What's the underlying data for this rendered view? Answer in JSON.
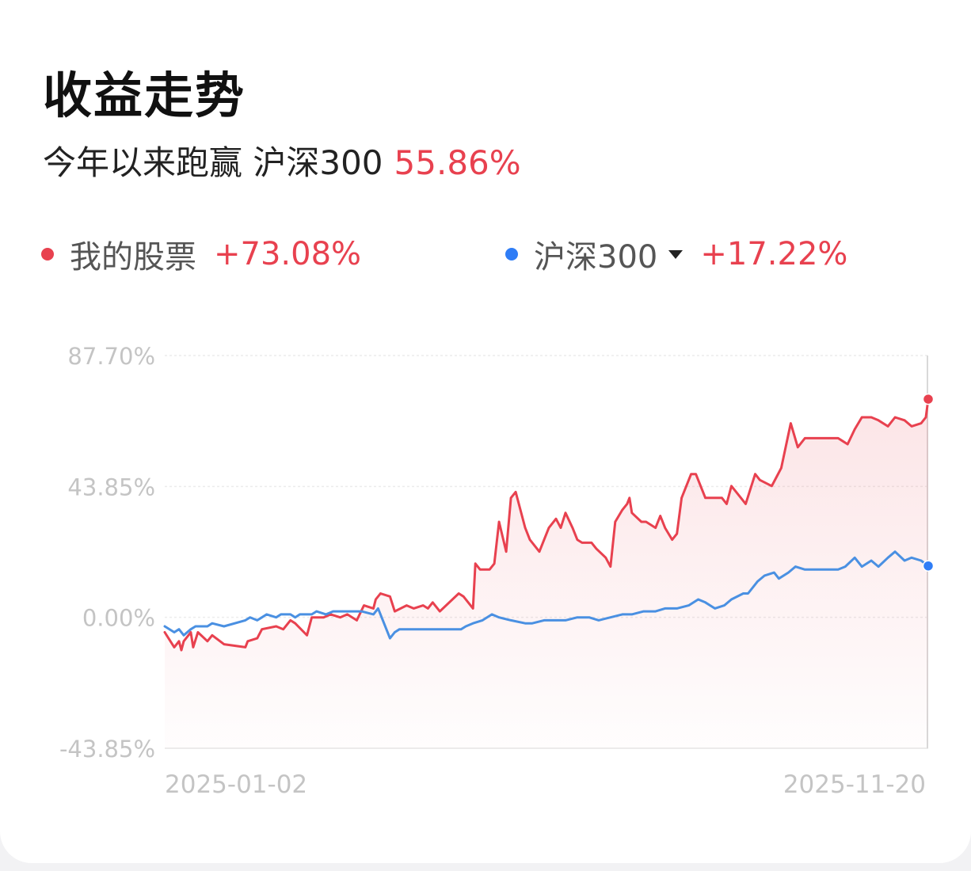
{
  "header": {
    "title": "收益走势",
    "subtitle_text": "今年以来跑赢 沪深300",
    "subtitle_value": "55.86%"
  },
  "legend": {
    "mine_label": "我的股票",
    "mine_value": "+73.08%",
    "index_label": "沪深300",
    "index_value": "+17.22%",
    "index_dropdown_icon": "caret-down-icon"
  },
  "colors": {
    "mine": "#e8414f",
    "index": "#4a90e2",
    "positive": "#e8414f",
    "axis_text": "#c4c4c4"
  },
  "chart_data": {
    "type": "line",
    "y_tick_labels": [
      "87.70%",
      "43.85%",
      "0.00%",
      "-43.85%"
    ],
    "y_ticks": [
      87.7,
      43.85,
      0,
      -43.85
    ],
    "ylim": [
      -43.85,
      87.7
    ],
    "x_tick_labels": [
      "2025-01-02",
      "2025-11-20"
    ],
    "x_range": [
      "2025-01-02",
      "2025-11-20"
    ],
    "grid": true,
    "legend_position": "top-left",
    "series": [
      {
        "name": "我的股票",
        "points": [
          [
            "2025-01-02",
            -5
          ],
          [
            "2025-01-06",
            -10
          ],
          [
            "2025-01-08",
            -8
          ],
          [
            "2025-01-09",
            -11
          ],
          [
            "2025-01-10",
            -8
          ],
          [
            "2025-01-13",
            -5
          ],
          [
            "2025-01-14",
            -10
          ],
          [
            "2025-01-16",
            -5
          ],
          [
            "2025-01-20",
            -8
          ],
          [
            "2025-01-22",
            -6
          ],
          [
            "2025-01-27",
            -9
          ],
          [
            "2025-02-05",
            -10
          ],
          [
            "2025-02-06",
            -8
          ],
          [
            "2025-02-10",
            -7
          ],
          [
            "2025-02-12",
            -4
          ],
          [
            "2025-02-18",
            -3
          ],
          [
            "2025-02-21",
            -4
          ],
          [
            "2025-02-24",
            -1
          ],
          [
            "2025-02-26",
            -2
          ],
          [
            "2025-03-03",
            -6
          ],
          [
            "2025-03-05",
            0
          ],
          [
            "2025-03-10",
            0
          ],
          [
            "2025-03-13",
            1
          ],
          [
            "2025-03-17",
            0
          ],
          [
            "2025-03-20",
            1
          ],
          [
            "2025-03-24",
            -1
          ],
          [
            "2025-03-27",
            4
          ],
          [
            "2025-03-31",
            3
          ],
          [
            "2025-04-01",
            6
          ],
          [
            "2025-04-03",
            8
          ],
          [
            "2025-04-07",
            7
          ],
          [
            "2025-04-09",
            2
          ],
          [
            "2025-04-14",
            4
          ],
          [
            "2025-04-17",
            3
          ],
          [
            "2025-04-21",
            4
          ],
          [
            "2025-04-23",
            3
          ],
          [
            "2025-04-25",
            5
          ],
          [
            "2025-04-28",
            2
          ],
          [
            "2025-05-06",
            8
          ],
          [
            "2025-05-08",
            7
          ],
          [
            "2025-05-12",
            3
          ],
          [
            "2025-05-13",
            18
          ],
          [
            "2025-05-15",
            16
          ],
          [
            "2025-05-19",
            16
          ],
          [
            "2025-05-21",
            18
          ],
          [
            "2025-05-23",
            32
          ],
          [
            "2025-05-26",
            22
          ],
          [
            "2025-05-28",
            40
          ],
          [
            "2025-05-30",
            42
          ],
          [
            "2025-06-03",
            30
          ],
          [
            "2025-06-05",
            26
          ],
          [
            "2025-06-09",
            22
          ],
          [
            "2025-06-11",
            26
          ],
          [
            "2025-06-13",
            30
          ],
          [
            "2025-06-16",
            33
          ],
          [
            "2025-06-18",
            30
          ],
          [
            "2025-06-20",
            35
          ],
          [
            "2025-06-23",
            30
          ],
          [
            "2025-06-25",
            26
          ],
          [
            "2025-06-27",
            25
          ],
          [
            "2025-07-01",
            25
          ],
          [
            "2025-07-03",
            23
          ],
          [
            "2025-07-07",
            20
          ],
          [
            "2025-07-09",
            17
          ],
          [
            "2025-07-11",
            32
          ],
          [
            "2025-07-14",
            36
          ],
          [
            "2025-07-16",
            38
          ],
          [
            "2025-07-17",
            40
          ],
          [
            "2025-07-18",
            35
          ],
          [
            "2025-07-22",
            32
          ],
          [
            "2025-07-24",
            32
          ],
          [
            "2025-07-28",
            30
          ],
          [
            "2025-07-30",
            34
          ],
          [
            "2025-08-01",
            30
          ],
          [
            "2025-08-04",
            26
          ],
          [
            "2025-08-06",
            28
          ],
          [
            "2025-08-08",
            40
          ],
          [
            "2025-08-12",
            48
          ],
          [
            "2025-08-14",
            48
          ],
          [
            "2025-08-18",
            40
          ],
          [
            "2025-08-20",
            40
          ],
          [
            "2025-08-25",
            40
          ],
          [
            "2025-08-27",
            38
          ],
          [
            "2025-08-29",
            44
          ],
          [
            "2025-09-02",
            40
          ],
          [
            "2025-09-04",
            38
          ],
          [
            "2025-09-08",
            48
          ],
          [
            "2025-09-10",
            46
          ],
          [
            "2025-09-15",
            44
          ],
          [
            "2025-09-17",
            47
          ],
          [
            "2025-09-19",
            50
          ],
          [
            "2025-09-23",
            65
          ],
          [
            "2025-09-26",
            57
          ],
          [
            "2025-09-29",
            60
          ],
          [
            "2025-10-09",
            60
          ],
          [
            "2025-10-13",
            60
          ],
          [
            "2025-10-15",
            59
          ],
          [
            "2025-10-17",
            58
          ],
          [
            "2025-10-20",
            63
          ],
          [
            "2025-10-23",
            67
          ],
          [
            "2025-10-27",
            67
          ],
          [
            "2025-10-30",
            66
          ],
          [
            "2025-11-03",
            64
          ],
          [
            "2025-11-06",
            67
          ],
          [
            "2025-11-10",
            66
          ],
          [
            "2025-11-13",
            64
          ],
          [
            "2025-11-17",
            65
          ],
          [
            "2025-11-19",
            67
          ],
          [
            "2025-11-20",
            73.08
          ]
        ]
      },
      {
        "name": "沪深300",
        "points": [
          [
            "2025-01-02",
            -3
          ],
          [
            "2025-01-06",
            -5
          ],
          [
            "2025-01-08",
            -4
          ],
          [
            "2025-01-10",
            -6
          ],
          [
            "2025-01-13",
            -4
          ],
          [
            "2025-01-15",
            -3
          ],
          [
            "2025-01-20",
            -3
          ],
          [
            "2025-01-22",
            -2
          ],
          [
            "2025-01-27",
            -3
          ],
          [
            "2025-02-05",
            -1
          ],
          [
            "2025-02-07",
            0
          ],
          [
            "2025-02-10",
            -1
          ],
          [
            "2025-02-12",
            0
          ],
          [
            "2025-02-14",
            1
          ],
          [
            "2025-02-18",
            0
          ],
          [
            "2025-02-20",
            1
          ],
          [
            "2025-02-24",
            1
          ],
          [
            "2025-02-26",
            0
          ],
          [
            "2025-02-28",
            1
          ],
          [
            "2025-03-03",
            1
          ],
          [
            "2025-03-05",
            1
          ],
          [
            "2025-03-07",
            2
          ],
          [
            "2025-03-11",
            1
          ],
          [
            "2025-03-14",
            2
          ],
          [
            "2025-03-18",
            2
          ],
          [
            "2025-03-21",
            2
          ],
          [
            "2025-03-26",
            2
          ],
          [
            "2025-03-31",
            1
          ],
          [
            "2025-04-02",
            3
          ],
          [
            "2025-04-07",
            -7
          ],
          [
            "2025-04-09",
            -5
          ],
          [
            "2025-04-11",
            -4
          ],
          [
            "2025-04-16",
            -4
          ],
          [
            "2025-04-21",
            -4
          ],
          [
            "2025-04-25",
            -4
          ],
          [
            "2025-04-30",
            -4
          ],
          [
            "2025-05-07",
            -4
          ],
          [
            "2025-05-09",
            -3
          ],
          [
            "2025-05-12",
            -2
          ],
          [
            "2025-05-16",
            -1
          ],
          [
            "2025-05-20",
            1
          ],
          [
            "2025-05-23",
            0
          ],
          [
            "2025-05-28",
            -1
          ],
          [
            "2025-06-03",
            -2
          ],
          [
            "2025-06-06",
            -2
          ],
          [
            "2025-06-11",
            -1
          ],
          [
            "2025-06-16",
            -1
          ],
          [
            "2025-06-20",
            -1
          ],
          [
            "2025-06-25",
            0
          ],
          [
            "2025-06-30",
            0
          ],
          [
            "2025-07-04",
            -1
          ],
          [
            "2025-07-09",
            0
          ],
          [
            "2025-07-14",
            1
          ],
          [
            "2025-07-18",
            1
          ],
          [
            "2025-07-23",
            2
          ],
          [
            "2025-07-28",
            2
          ],
          [
            "2025-08-01",
            3
          ],
          [
            "2025-08-06",
            3
          ],
          [
            "2025-08-11",
            4
          ],
          [
            "2025-08-15",
            6
          ],
          [
            "2025-08-18",
            5
          ],
          [
            "2025-08-22",
            3
          ],
          [
            "2025-08-26",
            4
          ],
          [
            "2025-08-29",
            6
          ],
          [
            "2025-09-03",
            8
          ],
          [
            "2025-09-05",
            8
          ],
          [
            "2025-09-09",
            12
          ],
          [
            "2025-09-12",
            14
          ],
          [
            "2025-09-16",
            15
          ],
          [
            "2025-09-18",
            13
          ],
          [
            "2025-09-22",
            15
          ],
          [
            "2025-09-25",
            17
          ],
          [
            "2025-09-29",
            16
          ],
          [
            "2025-10-09",
            16
          ],
          [
            "2025-10-13",
            16
          ],
          [
            "2025-10-16",
            17
          ],
          [
            "2025-10-20",
            20
          ],
          [
            "2025-10-23",
            17
          ],
          [
            "2025-10-27",
            19
          ],
          [
            "2025-10-30",
            17
          ],
          [
            "2025-11-03",
            20
          ],
          [
            "2025-11-06",
            22
          ],
          [
            "2025-11-10",
            19
          ],
          [
            "2025-11-13",
            20
          ],
          [
            "2025-11-17",
            19
          ],
          [
            "2025-11-20",
            17.22
          ]
        ]
      }
    ]
  }
}
